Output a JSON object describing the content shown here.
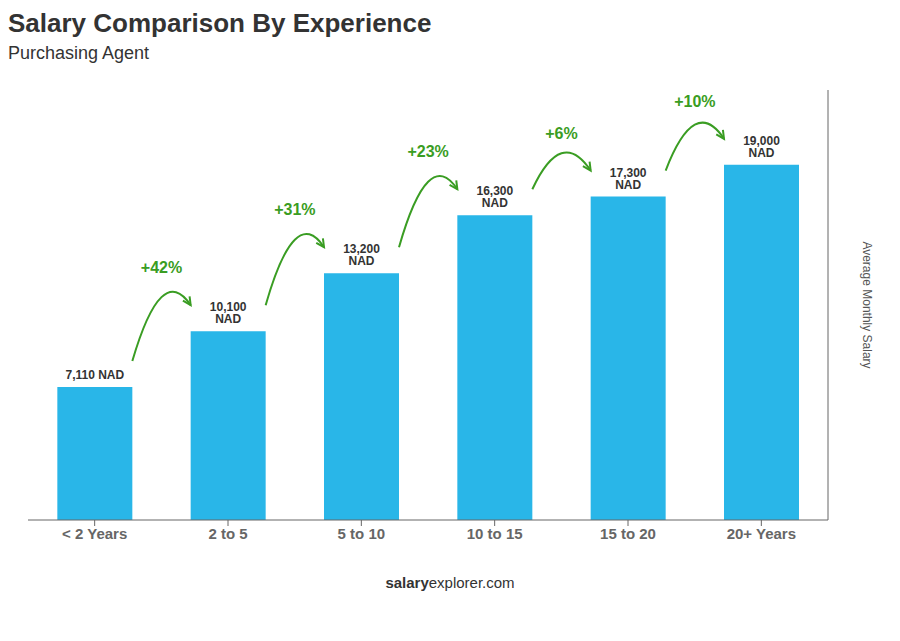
{
  "chart_data": {
    "type": "bar",
    "title": "Salary Comparison By Experience",
    "subtitle": "Purchasing Agent",
    "categories": [
      "< 2 Years",
      "2 to 5",
      "5 to 10",
      "10 to 15",
      "15 to 20",
      "20+ Years"
    ],
    "values": [
      7110,
      10100,
      13200,
      16300,
      17300,
      19000
    ],
    "value_labels": [
      "7,110 NAD",
      "10,100 NAD",
      "13,200 NAD",
      "16,300 NAD",
      "17,300 NAD",
      "19,000 NAD"
    ],
    "data_labels": true,
    "color": "#29b6e8",
    "ylim": [
      0,
      23000
    ],
    "ylabel": "Average Monthly Salary",
    "tick_labels": "x",
    "annotations": [
      "+42%",
      "+31%",
      "+23%",
      "+6%",
      "+10%"
    ],
    "footer": [
      "salary",
      "explorer.com"
    ]
  }
}
